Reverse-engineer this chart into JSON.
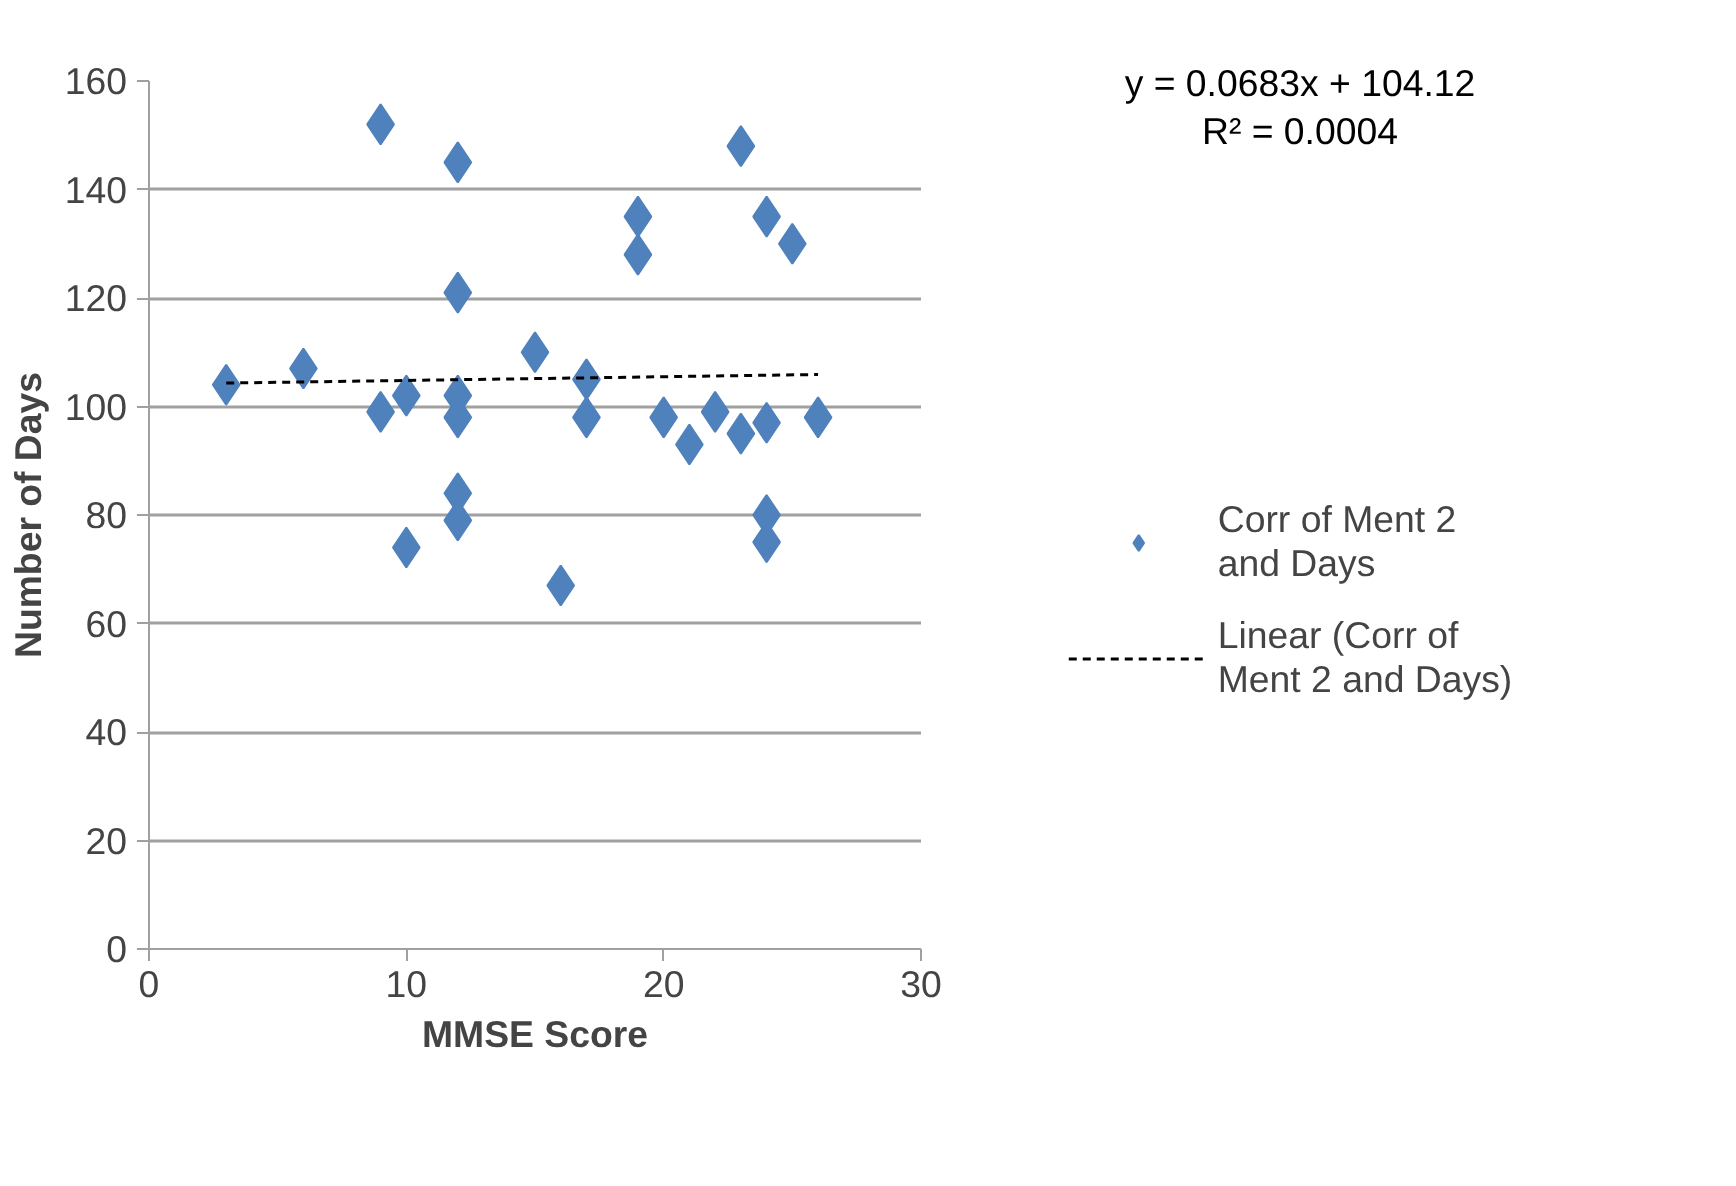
{
  "chart_data": {
    "type": "scatter",
    "xlabel": "MMSE Score",
    "ylabel": "Number of Days",
    "xlim": [
      0,
      30
    ],
    "xticks": [
      0,
      10,
      20,
      30
    ],
    "ylim": [
      0,
      160
    ],
    "yticks": [
      0,
      20,
      40,
      60,
      80,
      100,
      120,
      140,
      160
    ],
    "grid": "y",
    "legend": "right",
    "marker": "diamond",
    "annotations": [
      "y = 0.0683x + 104.12",
      "R² = 0.0004"
    ],
    "series": [
      {
        "name": "Corr of Ment 2 and Days",
        "color": "#4f81bd",
        "x": [
          3,
          6,
          9,
          9,
          10,
          10,
          12,
          12,
          12,
          12,
          12,
          12,
          15,
          16,
          17,
          17,
          19,
          19,
          20,
          21,
          22,
          23,
          23,
          24,
          24,
          24,
          24,
          25,
          26
        ],
        "values": [
          104,
          107,
          152,
          99,
          102,
          74,
          145,
          121,
          102,
          98,
          84,
          79,
          110,
          67,
          105,
          98,
          135,
          128,
          98,
          93,
          99,
          148,
          95,
          135,
          97,
          80,
          75,
          130,
          98
        ]
      },
      {
        "name": "Linear (Corr of Ment 2 and Days)",
        "type": "line",
        "color": "#000000",
        "line_style": "dashed",
        "marker": "none",
        "x": [
          3,
          26
        ],
        "values": [
          104.32,
          105.9
        ]
      }
    ]
  }
}
